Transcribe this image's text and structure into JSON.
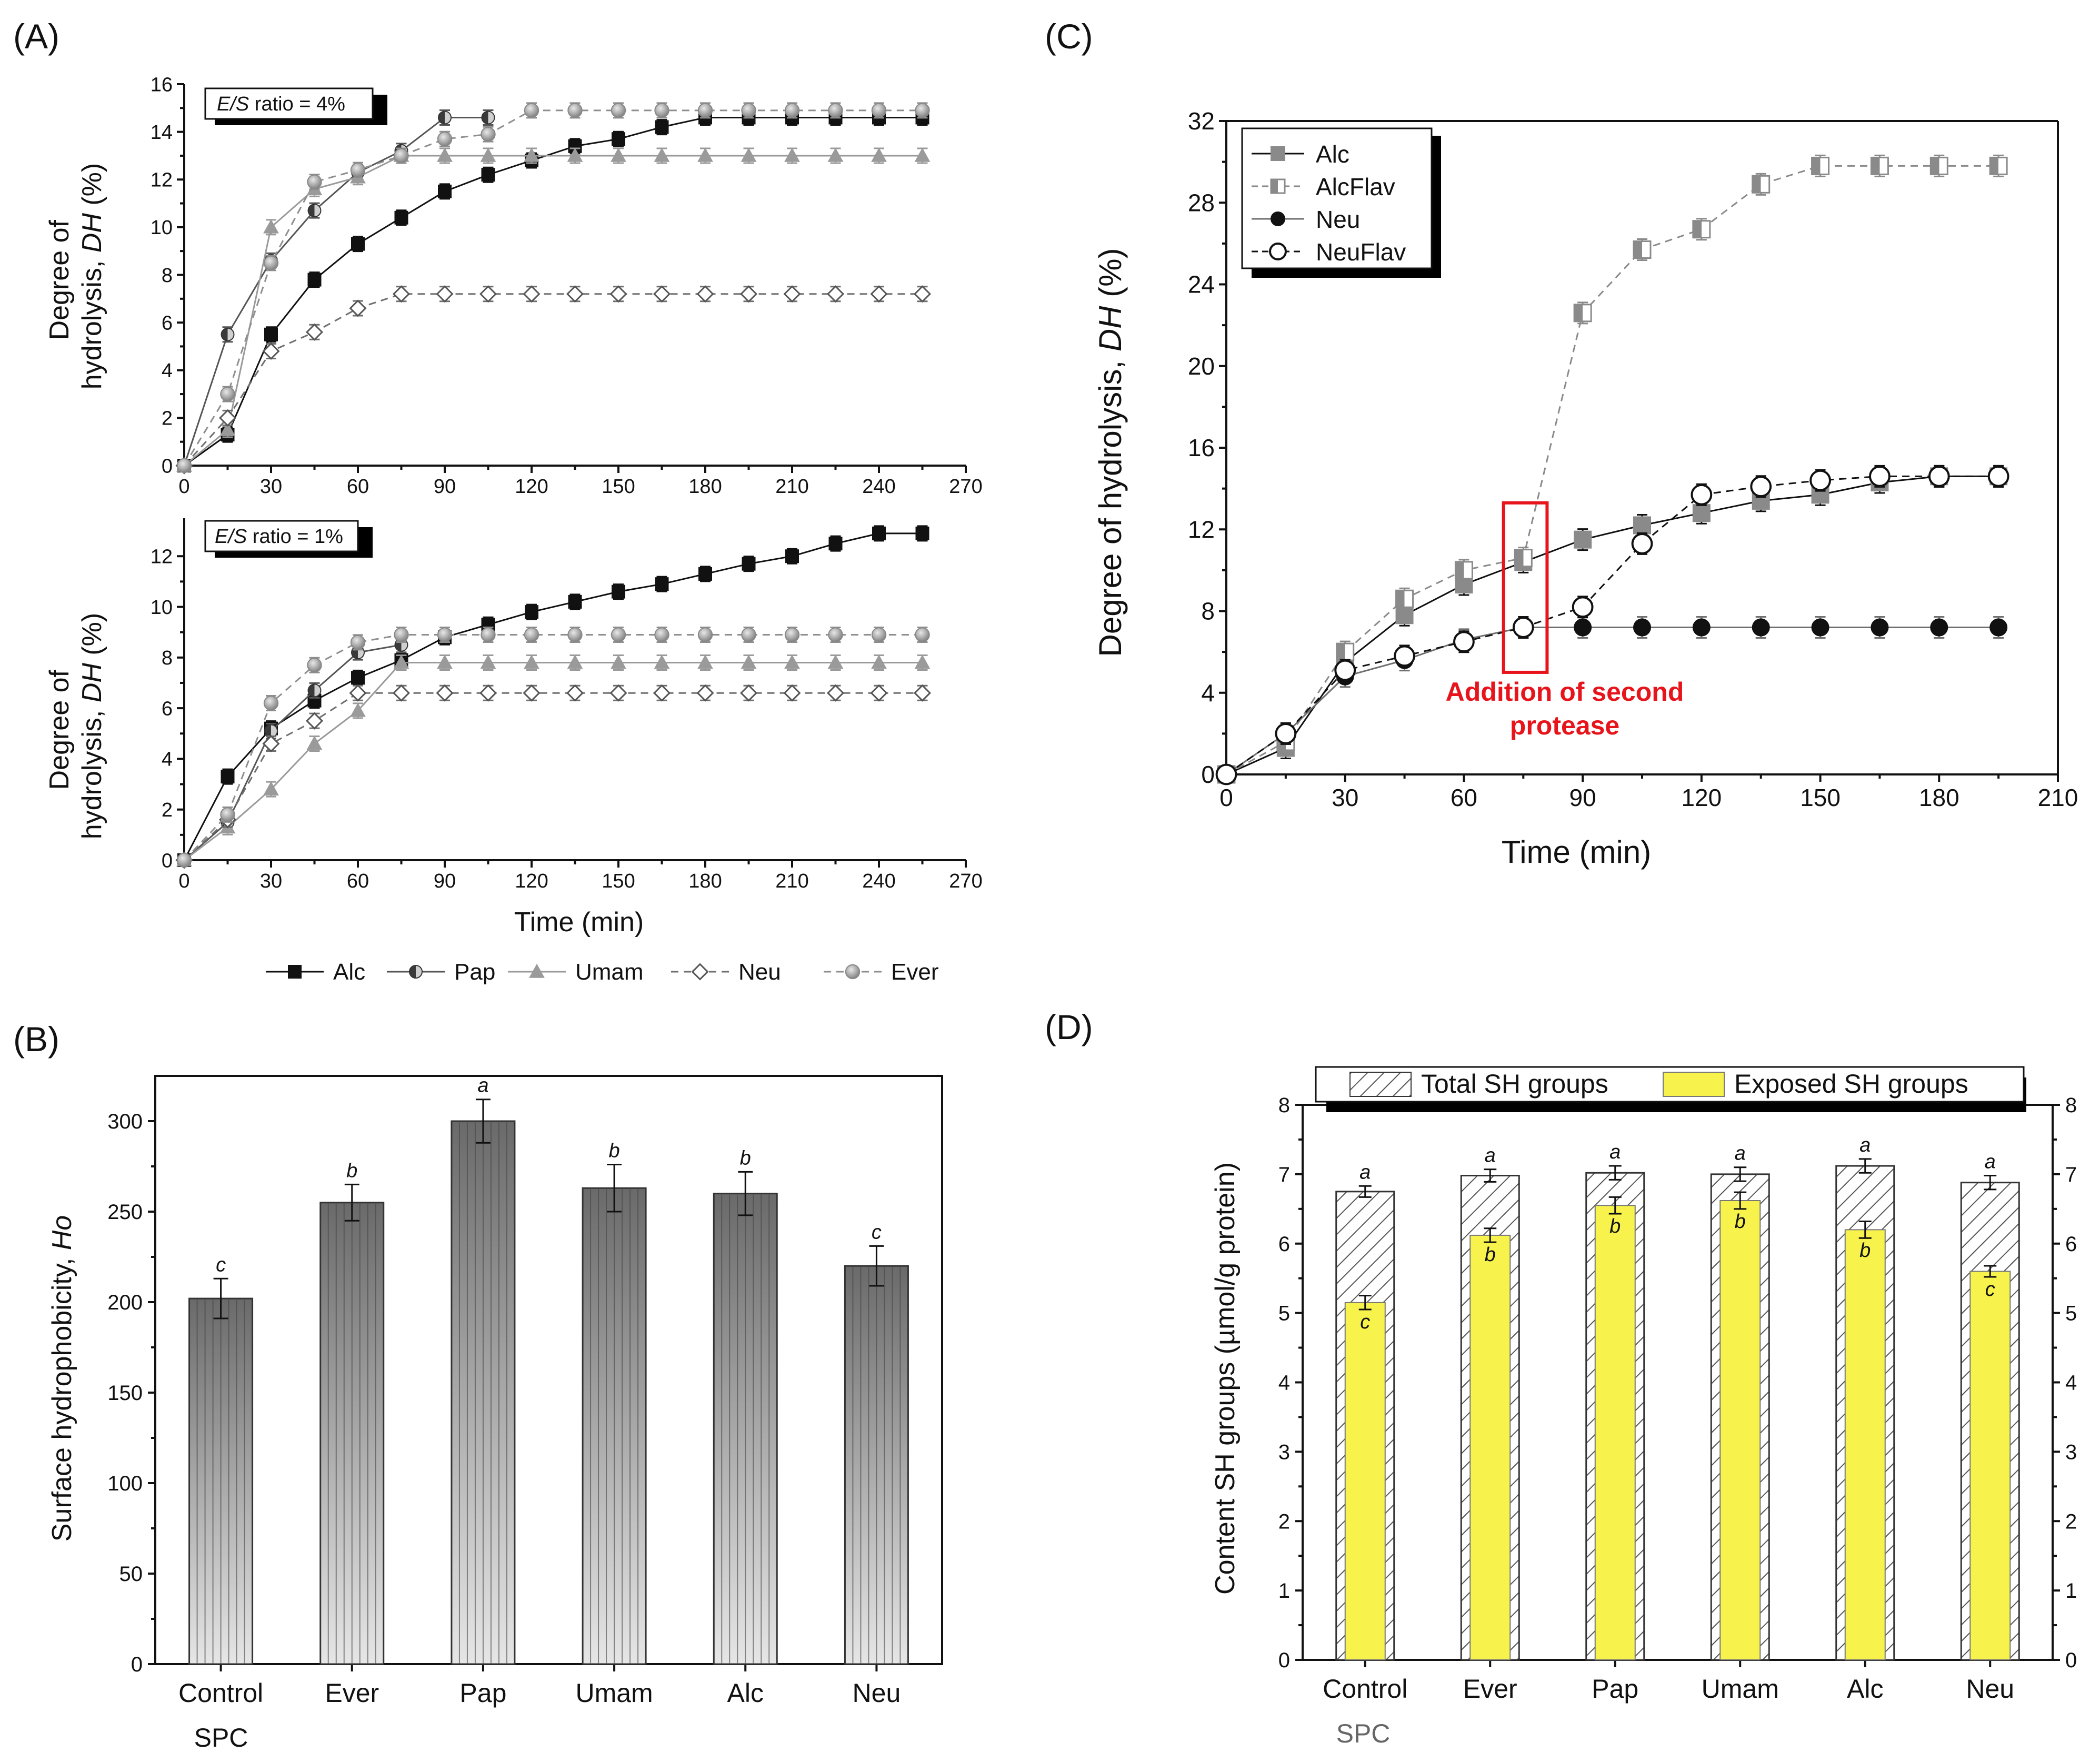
{
  "figure": {
    "panels": [
      "(A)",
      "(B)",
      "(C)",
      "(D)"
    ]
  },
  "colors": {
    "Alc": "#111111",
    "Pap": "#555555",
    "Umam": "#9a9a9a",
    "Neu": "#6f6f6f",
    "Ever": "#8e8e8e",
    "AlcFlav": "#8a8a8a",
    "NeuFlav": "#111111",
    "red": "#e8141b",
    "yellow": "#f7f34c"
  },
  "chart_data": [
    {
      "id": "A-top",
      "type": "line",
      "panel": "(A)",
      "annotation_prefix": "E/S",
      "annotation_suffix": " ratio = 4%",
      "ylabel_line1": "Degree of",
      "ylabel_line2_prefix": "hydrolysis, ",
      "ylabel_line2_italic": "DH",
      "ylabel_line2_suffix": " (%)",
      "xlim": [
        0,
        270
      ],
      "ylim": [
        0,
        16
      ],
      "xticks": [
        0,
        30,
        60,
        90,
        120,
        150,
        180,
        210,
        240,
        270
      ],
      "yticks": [
        0,
        2,
        4,
        6,
        8,
        10,
        12,
        14,
        16
      ],
      "series": [
        {
          "name": "Alc",
          "marker": "square-filled",
          "dash": false,
          "x": [
            0,
            15,
            30,
            45,
            60,
            75,
            90,
            105,
            120,
            135,
            150,
            165,
            180,
            195,
            210,
            225,
            240,
            255
          ],
          "y": [
            0,
            1.3,
            5.5,
            7.8,
            9.3,
            10.4,
            11.5,
            12.2,
            12.8,
            13.4,
            13.7,
            14.2,
            14.6,
            14.6,
            14.6,
            14.6,
            14.6,
            14.6
          ]
        },
        {
          "name": "Pap",
          "marker": "circle-half",
          "dash": false,
          "x": [
            0,
            15,
            30,
            45,
            60,
            75,
            90,
            105
          ],
          "y": [
            0,
            5.5,
            8.6,
            10.7,
            12.3,
            13.2,
            14.6,
            14.6
          ]
        },
        {
          "name": "Umam",
          "marker": "triangle",
          "dash": false,
          "x": [
            0,
            15,
            30,
            45,
            60,
            75,
            90,
            105,
            120,
            135,
            150,
            165,
            180,
            195,
            210,
            225,
            240,
            255
          ],
          "y": [
            0,
            1.5,
            10.0,
            11.6,
            12.1,
            13.0,
            13.0,
            13.0,
            13.0,
            13.0,
            13.0,
            13.0,
            13.0,
            13.0,
            13.0,
            13.0,
            13.0,
            13.0
          ]
        },
        {
          "name": "Neu",
          "marker": "diamond-open",
          "dash": true,
          "x": [
            0,
            15,
            30,
            45,
            60,
            75,
            90,
            105,
            120,
            135,
            150,
            165,
            180,
            195,
            210,
            225,
            240,
            255
          ],
          "y": [
            0,
            2.0,
            4.8,
            5.6,
            6.6,
            7.2,
            7.2,
            7.2,
            7.2,
            7.2,
            7.2,
            7.2,
            7.2,
            7.2,
            7.2,
            7.2,
            7.2,
            7.2
          ]
        },
        {
          "name": "Ever",
          "marker": "circle-gray",
          "dash": true,
          "x": [
            0,
            15,
            30,
            45,
            60,
            75,
            90,
            105,
            120,
            135,
            150,
            165,
            180,
            195,
            210,
            225,
            240,
            255
          ],
          "y": [
            0,
            3.0,
            8.5,
            11.9,
            12.4,
            13.0,
            13.7,
            13.9,
            14.9,
            14.9,
            14.9,
            14.9,
            14.9,
            14.9,
            14.9,
            14.9,
            14.9,
            14.9
          ]
        }
      ]
    },
    {
      "id": "A-bottom",
      "type": "line",
      "panel": "(A)",
      "annotation_prefix": "E/S",
      "annotation_suffix": " ratio = 1%",
      "ylabel_line1": "Degree of",
      "ylabel_line2_prefix": "hydrolysis, ",
      "ylabel_line2_italic": "DH",
      "ylabel_line2_suffix": " (%)",
      "xlabel": "Time (min)",
      "xlim": [
        0,
        270
      ],
      "ylim": [
        0,
        13.5
      ],
      "xticks": [
        0,
        30,
        60,
        90,
        120,
        150,
        180,
        210,
        240,
        270
      ],
      "yticks": [
        0,
        2,
        4,
        6,
        8,
        10,
        12
      ],
      "series": [
        {
          "name": "Alc",
          "marker": "square-filled",
          "dash": false,
          "x": [
            0,
            15,
            30,
            45,
            60,
            75,
            90,
            105,
            120,
            135,
            150,
            165,
            180,
            195,
            210,
            225,
            240,
            255
          ],
          "y": [
            0,
            3.3,
            5.2,
            6.3,
            7.2,
            7.9,
            8.8,
            9.3,
            9.8,
            10.2,
            10.6,
            10.9,
            11.3,
            11.7,
            12.0,
            12.5,
            12.9,
            12.9
          ]
        },
        {
          "name": "Pap",
          "marker": "circle-half",
          "dash": false,
          "x": [
            0,
            15,
            30,
            45,
            60,
            75
          ],
          "y": [
            0,
            1.5,
            5.1,
            6.7,
            8.2,
            8.5
          ]
        },
        {
          "name": "Umam",
          "marker": "triangle",
          "dash": false,
          "x": [
            0,
            15,
            30,
            45,
            60,
            75,
            90,
            105,
            120,
            135,
            150,
            165,
            180,
            195,
            210,
            225,
            240,
            255
          ],
          "y": [
            0,
            1.3,
            2.8,
            4.6,
            5.9,
            7.8,
            7.8,
            7.8,
            7.8,
            7.8,
            7.8,
            7.8,
            7.8,
            7.8,
            7.8,
            7.8,
            7.8,
            7.8
          ]
        },
        {
          "name": "Neu",
          "marker": "diamond-open",
          "dash": true,
          "x": [
            0,
            15,
            30,
            45,
            60,
            75,
            90,
            105,
            120,
            135,
            150,
            165,
            180,
            195,
            210,
            225,
            240,
            255
          ],
          "y": [
            0,
            1.6,
            4.6,
            5.5,
            6.6,
            6.6,
            6.6,
            6.6,
            6.6,
            6.6,
            6.6,
            6.6,
            6.6,
            6.6,
            6.6,
            6.6,
            6.6,
            6.6
          ]
        },
        {
          "name": "Ever",
          "marker": "circle-gray",
          "dash": true,
          "x": [
            0,
            15,
            30,
            45,
            60,
            75,
            90,
            105,
            120,
            135,
            150,
            165,
            180,
            195,
            210,
            225,
            240,
            255
          ],
          "y": [
            0,
            1.8,
            6.2,
            7.7,
            8.6,
            8.9,
            8.9,
            8.9,
            8.9,
            8.9,
            8.9,
            8.9,
            8.9,
            8.9,
            8.9,
            8.9,
            8.9,
            8.9
          ]
        }
      ],
      "legend": [
        "Alc",
        "Pap",
        "Umam",
        "Neu",
        "Ever"
      ]
    },
    {
      "id": "B",
      "type": "bar",
      "panel": "(B)",
      "ylabel_prefix": "Surface hydrophobicity, ",
      "ylabel_italic": "Ho",
      "categories": [
        "Control",
        "Ever",
        "Pap",
        "Umam",
        "Alc",
        "Neu"
      ],
      "sublabel": "SPC",
      "values": [
        202,
        255,
        300,
        263,
        260,
        220
      ],
      "errors": [
        11,
        10,
        12,
        13,
        12,
        11
      ],
      "significance": [
        "c",
        "b",
        "a",
        "b",
        "b",
        "c"
      ],
      "ylim": [
        0,
        325
      ],
      "yticks": [
        0,
        50,
        100,
        150,
        200,
        250,
        300
      ]
    },
    {
      "id": "C",
      "type": "line",
      "panel": "(C)",
      "ylabel_prefix": "Degree of hydrolysis, ",
      "ylabel_italic": "DH",
      "ylabel_suffix": " (%)",
      "xlabel": "Time (min)",
      "xlim": [
        0,
        210
      ],
      "ylim": [
        0,
        32
      ],
      "xticks": [
        0,
        30,
        60,
        90,
        120,
        150,
        180,
        210
      ],
      "yticks": [
        0,
        4,
        8,
        12,
        16,
        20,
        24,
        28,
        32
      ],
      "annotation_line1": "Addition of second",
      "annotation_line2": "protease",
      "annotation_box": {
        "x_from": 70,
        "x_to": 81,
        "y_from": 5,
        "y_to": 13.3
      },
      "series": [
        {
          "name": "Alc",
          "marker": "square-gray",
          "dash": false,
          "x": [
            0,
            15,
            30,
            45,
            60,
            75,
            90,
            105,
            120,
            135,
            150,
            165,
            180,
            195
          ],
          "y": [
            0,
            1.3,
            5.5,
            7.8,
            9.3,
            10.4,
            11.5,
            12.2,
            12.8,
            13.4,
            13.7,
            14.3,
            14.6,
            14.6
          ]
        },
        {
          "name": "AlcFlav",
          "marker": "square-half",
          "dash": true,
          "x": [
            0,
            15,
            30,
            45,
            60,
            75,
            90,
            105,
            120,
            135,
            150,
            165,
            180,
            195
          ],
          "y": [
            0,
            1.6,
            6.0,
            8.6,
            10.0,
            10.6,
            22.6,
            25.7,
            26.7,
            28.9,
            29.8,
            29.8,
            29.8,
            29.8
          ]
        },
        {
          "name": "Neu",
          "marker": "circle-filled",
          "dash": false,
          "x": [
            0,
            15,
            30,
            45,
            60,
            75,
            90,
            105,
            120,
            135,
            150,
            165,
            180,
            195
          ],
          "y": [
            0,
            2.0,
            4.8,
            5.6,
            6.6,
            7.2,
            7.2,
            7.2,
            7.2,
            7.2,
            7.2,
            7.2,
            7.2,
            7.2
          ]
        },
        {
          "name": "NeuFlav",
          "marker": "circle-open",
          "dash": true,
          "x": [
            0,
            15,
            30,
            45,
            60,
            75,
            90,
            105,
            120,
            135,
            150,
            165,
            180,
            195
          ],
          "y": [
            0,
            2.0,
            5.1,
            5.8,
            6.5,
            7.2,
            8.2,
            11.3,
            13.7,
            14.1,
            14.4,
            14.6,
            14.6,
            14.6
          ]
        }
      ],
      "legend": [
        "Alc",
        "AlcFlav",
        "Neu",
        "NeuFlav"
      ]
    },
    {
      "id": "D",
      "type": "bar",
      "panel": "(D)",
      "ylabel": "Content SH groups (µmol/g protein)",
      "categories": [
        "Control",
        "Ever",
        "Pap",
        "Umam",
        "Alc",
        "Neu"
      ],
      "sublabel": "SPC",
      "series": [
        {
          "name": "Total SH groups",
          "values": [
            6.75,
            6.98,
            7.02,
            7.0,
            7.12,
            6.88
          ],
          "errors": [
            0.08,
            0.09,
            0.1,
            0.1,
            0.1,
            0.1
          ],
          "significance": [
            "a",
            "a",
            "a",
            "a",
            "a",
            "a"
          ]
        },
        {
          "name": "Exposed SH groups",
          "values": [
            5.15,
            6.12,
            6.55,
            6.62,
            6.2,
            5.6
          ],
          "errors": [
            0.1,
            0.1,
            0.12,
            0.12,
            0.12,
            0.08
          ],
          "significance": [
            "c",
            "b",
            "b",
            "b",
            "b",
            "c"
          ]
        }
      ],
      "ylim": [
        0,
        8
      ],
      "yticks": [
        0,
        1,
        2,
        3,
        4,
        5,
        6,
        7,
        8
      ]
    }
  ]
}
